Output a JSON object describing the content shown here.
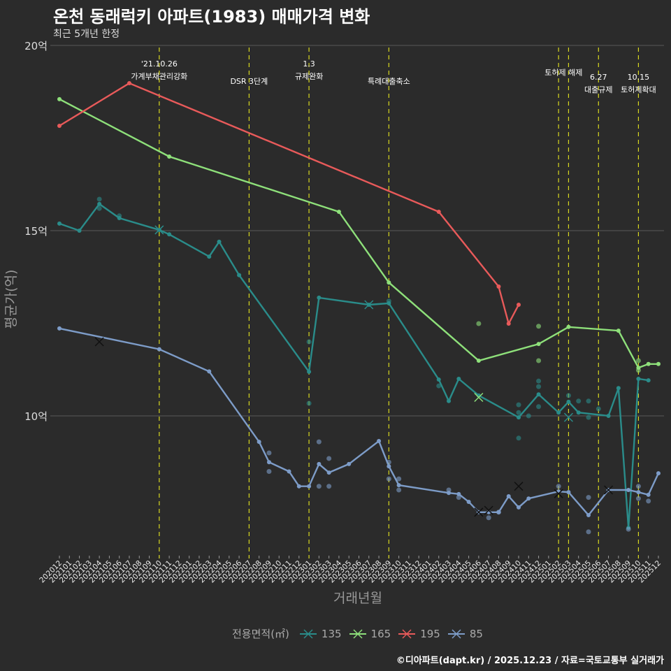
{
  "chart_data": {
    "type": "line",
    "title": "온천 동래럭키 아파트(1983) 매매가격 변화",
    "subtitle": "최근 5개년 한정",
    "xlabel": "거래년월",
    "ylabel": "평균가(억)",
    "ylim": [
      6.6,
      20.1
    ],
    "yticks": [
      {
        "v": 10,
        "label": "10억"
      },
      {
        "v": 15,
        "label": "15억"
      },
      {
        "v": 20,
        "label": "20억"
      }
    ],
    "x": [
      "202012",
      "202101",
      "202102",
      "202103",
      "202104",
      "202105",
      "202106",
      "202107",
      "202108",
      "202109",
      "202110",
      "202111",
      "202112",
      "202201",
      "202202",
      "202203",
      "202204",
      "202205",
      "202206",
      "202207",
      "202208",
      "202209",
      "202210",
      "202211",
      "202212",
      "202301",
      "202302",
      "202303",
      "202304",
      "202305",
      "202306",
      "202307",
      "202308",
      "202309",
      "202310",
      "202311",
      "202312",
      "202401",
      "202402",
      "202403",
      "202404",
      "202405",
      "202406",
      "202407",
      "202408",
      "202409",
      "202410",
      "202411",
      "202412",
      "202501",
      "202502",
      "202503",
      "202504",
      "202505",
      "202506",
      "202507",
      "202508",
      "202509",
      "202510",
      "202511",
      "202512"
    ],
    "legend_title": "전용면적(㎡)",
    "legend_placement": "bottom",
    "series": [
      {
        "name": "135",
        "color": "#2a8c8a",
        "points": [
          [
            0,
            15.19
          ],
          [
            2,
            15.0
          ],
          [
            4,
            15.72
          ],
          [
            6,
            15.34
          ],
          [
            10,
            15.02
          ],
          [
            11,
            14.9
          ],
          [
            15,
            14.3
          ],
          [
            16,
            14.7
          ],
          [
            18,
            13.8
          ],
          [
            25,
            11.19
          ],
          [
            26,
            13.19
          ],
          [
            31,
            13.0
          ],
          [
            33,
            13.04
          ],
          [
            38,
            10.98
          ],
          [
            39,
            10.4
          ],
          [
            40,
            11.0
          ],
          [
            42,
            10.55
          ],
          [
            46,
            9.96
          ],
          [
            48,
            10.58
          ],
          [
            50,
            10.09
          ],
          [
            51,
            10.38
          ],
          [
            52,
            10.09
          ],
          [
            55,
            10.0
          ],
          [
            56,
            10.75
          ],
          [
            57,
            6.98
          ],
          [
            58,
            11.0
          ],
          [
            59,
            10.96
          ]
        ],
        "scatter": [
          [
            4,
            15.85
          ],
          [
            4,
            15.6
          ],
          [
            6,
            15.4
          ],
          [
            25,
            12.0
          ],
          [
            25,
            10.34
          ],
          [
            33,
            13.1
          ],
          [
            38,
            10.81
          ],
          [
            46,
            10.3
          ],
          [
            46,
            10.09
          ],
          [
            46,
            9.4
          ],
          [
            47,
            10.0
          ],
          [
            48,
            10.79
          ],
          [
            48,
            10.25
          ],
          [
            48,
            10.94
          ],
          [
            51,
            10.55
          ],
          [
            52,
            10.4
          ],
          [
            53,
            10.4
          ],
          [
            54,
            10.19
          ],
          [
            53,
            9.96
          ]
        ],
        "crosses": [
          [
            10,
            15.02
          ],
          [
            31,
            13.0
          ],
          [
            51,
            9.96
          ]
        ]
      },
      {
        "name": "165",
        "color": "#8ee07a",
        "points": [
          [
            0,
            18.55
          ],
          [
            11,
            17.0
          ],
          [
            28,
            15.51
          ],
          [
            33,
            13.6
          ],
          [
            42,
            11.49
          ],
          [
            48,
            11.94
          ],
          [
            51,
            12.4
          ],
          [
            56,
            12.3
          ],
          [
            58,
            11.3
          ],
          [
            59,
            11.4
          ],
          [
            60,
            11.4
          ]
        ],
        "scatter": [
          [
            42,
            12.49
          ],
          [
            48,
            12.42
          ],
          [
            48,
            11.49
          ],
          [
            58,
            11.49
          ],
          [
            58,
            11.23
          ]
        ],
        "crosses": [
          [
            42,
            10.5
          ]
        ]
      },
      {
        "name": "195",
        "color": "#e85a5a",
        "points": [
          [
            0,
            17.83
          ],
          [
            7,
            18.98
          ],
          [
            38,
            15.51
          ],
          [
            44,
            13.49
          ],
          [
            45,
            12.49
          ],
          [
            46,
            13.0
          ]
        ],
        "scatter": [],
        "crosses": []
      },
      {
        "name": "85",
        "color": "#7d9cc8",
        "points": [
          [
            0,
            12.36
          ],
          [
            10,
            11.8
          ],
          [
            15,
            11.2
          ],
          [
            20,
            9.3
          ],
          [
            21,
            8.75
          ],
          [
            23,
            8.5
          ],
          [
            24,
            8.1
          ],
          [
            25,
            8.1
          ],
          [
            26,
            8.7
          ],
          [
            27,
            8.47
          ],
          [
            29,
            8.7
          ],
          [
            32,
            9.32
          ],
          [
            33,
            8.64
          ],
          [
            34,
            8.13
          ],
          [
            39,
            7.92
          ],
          [
            40,
            7.89
          ],
          [
            41,
            7.68
          ],
          [
            42,
            7.4
          ],
          [
            43,
            7.4
          ],
          [
            44,
            7.4
          ],
          [
            45,
            7.83
          ],
          [
            46,
            7.53
          ],
          [
            47,
            7.77
          ],
          [
            50,
            7.96
          ],
          [
            51,
            7.94
          ],
          [
            53,
            7.32
          ],
          [
            55,
            8.0
          ],
          [
            57,
            8.0
          ],
          [
            58,
            7.94
          ],
          [
            59,
            7.87
          ],
          [
            60,
            8.45
          ]
        ],
        "scatter": [
          [
            26,
            9.3
          ],
          [
            27,
            8.85
          ],
          [
            26,
            8.1
          ],
          [
            27,
            8.1
          ],
          [
            21,
            9.0
          ],
          [
            21,
            8.5
          ],
          [
            33,
            8.3
          ],
          [
            33,
            8.75
          ],
          [
            34,
            8.3
          ],
          [
            34,
            8.0
          ],
          [
            39,
            8.0
          ],
          [
            40,
            7.8
          ],
          [
            44,
            7.4
          ],
          [
            43,
            7.25
          ],
          [
            50,
            8.1
          ],
          [
            53,
            7.8
          ],
          [
            53,
            6.87
          ],
          [
            57,
            6.94
          ],
          [
            58,
            8.1
          ],
          [
            58,
            7.77
          ],
          [
            59,
            7.7
          ]
        ],
        "crosses": [
          [
            4,
            12.0
          ],
          [
            46,
            8.1
          ],
          [
            42,
            7.4
          ],
          [
            43,
            7.45
          ],
          [
            50,
            7.9
          ],
          [
            55,
            8.0
          ]
        ]
      }
    ],
    "annotations": [
      {
        "x": 10,
        "lines": [
          "'21.10.26",
          "가계부채관리강화"
        ],
        "row": 0
      },
      {
        "x": 19,
        "lines": [
          "DSR 3단계"
        ],
        "row": 2
      },
      {
        "x": 25,
        "lines": [
          "1.3",
          "규제완화"
        ],
        "row": 0
      },
      {
        "x": 33,
        "lines": [
          "특례대출축소"
        ],
        "row": 2
      },
      {
        "x": 50,
        "lines": [
          "토허제 해제"
        ],
        "row": 1,
        "label_at": 50.5
      },
      {
        "x": 51,
        "lines": [],
        "row": 1
      },
      {
        "x": 54,
        "lines": [
          "6.27",
          "대출규제"
        ],
        "row": 1.5
      },
      {
        "x": 58,
        "lines": [
          "10.15",
          "토허제확대"
        ],
        "row": 1.5
      }
    ]
  },
  "footer": "©디아파트(dapt.kr) / 2025.12.23 / 자료=국토교통부 실거래가"
}
